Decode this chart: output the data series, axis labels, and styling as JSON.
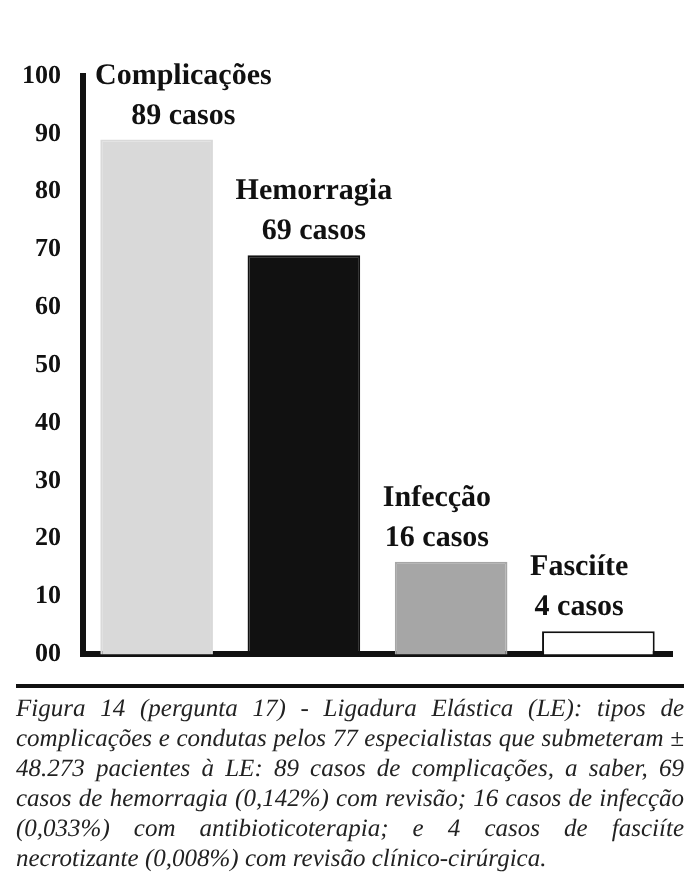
{
  "chart_data": {
    "type": "bar",
    "categories": [
      null,
      null,
      null,
      null
    ],
    "values": [
      89,
      69,
      16,
      4
    ],
    "colors": [
      "#d9d9d9",
      "#111111",
      "#a6a6a6",
      "#ffffff"
    ],
    "value_labels": [
      "Complicações 89 casos",
      "Hemorragia 69 casos",
      "Infecção 16 casos",
      "Fasciíte 4 casos"
    ],
    "ylim": [
      0,
      100
    ],
    "yticks": [
      {
        "value": 0,
        "label": "00"
      },
      10,
      20,
      30,
      40,
      50,
      60,
      70,
      80,
      90,
      100
    ],
    "grid": false,
    "legend": false,
    "annotations": [
      "Figura 14 (pergunta 17) - Ligadura Elástica (LE): tipos de complicações e condutas pelos 77 especialistas que submeteram ± 48.273 pacientes à LE: 89 casos de complicações, a saber, 69 casos de hemorragia (0,142%) com revisão; 16 casos de infecção (0,033%) com antibioticoterapia; e 4 casos de fasciíte necrotizante (0,008%) com revisão clínico-cirúrgica."
    ]
  }
}
